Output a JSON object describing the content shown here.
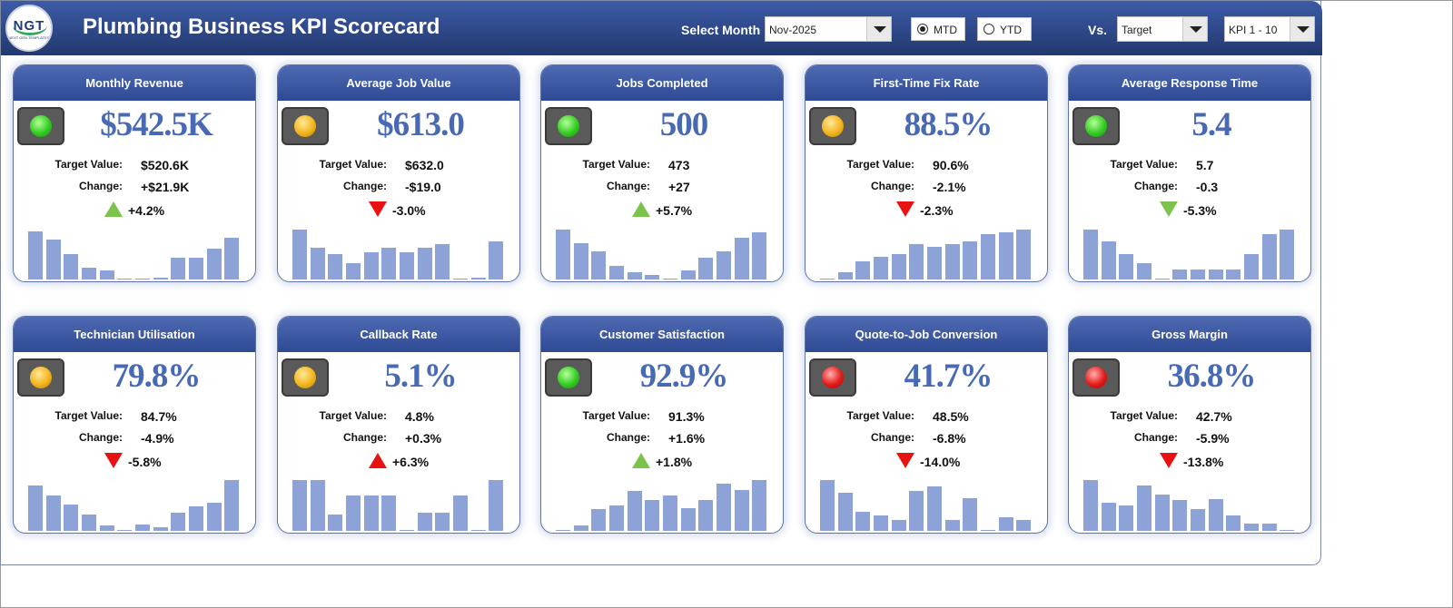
{
  "header": {
    "logo_text": "NGT",
    "logo_sub": "NEXT GEN TEMPLATES",
    "title": "Plumbing Business KPI Scorecard",
    "select_month_label": "Select Month",
    "month_value": "Nov-2025",
    "mtd_label": "MTD",
    "ytd_label": "YTD",
    "mtd_selected": true,
    "vs_label": "Vs.",
    "vs_value": "Target",
    "kpi_range_value": "KPI 1 - 10"
  },
  "labels": {
    "target": "Target Value:",
    "change": "Change:"
  },
  "colors": {
    "header_blue": "#22386f",
    "value_blue": "#4869b4",
    "bar_blue": "#8da2d6",
    "up_green": "#7cc34e",
    "down_red": "#e81212"
  },
  "kpis": [
    {
      "title": "Monthly Revenue",
      "value": "$542.5K",
      "target": "$520.6K",
      "change": "+$21.9K",
      "pct": "+4.2%",
      "status": "green",
      "arrow": "up-green",
      "bars": [
        0.95,
        0.78,
        0.5,
        0.24,
        0.18,
        0.02,
        0.02,
        0.04,
        0.42,
        0.42,
        0.6,
        0.82
      ]
    },
    {
      "title": "Average Job Value",
      "value": "$613.0",
      "target": "$632.0",
      "change": "-$19.0",
      "pct": "-3.0%",
      "status": "amber",
      "arrow": "down-red",
      "bars": [
        0.98,
        0.63,
        0.5,
        0.33,
        0.53,
        0.62,
        0.53,
        0.62,
        0.7,
        0.02,
        0.04,
        0.75
      ]
    },
    {
      "title": "Jobs Completed",
      "value": "500",
      "target": "473",
      "change": "+27",
      "pct": "+5.7%",
      "status": "green",
      "arrow": "up-green",
      "bars": [
        0.98,
        0.72,
        0.55,
        0.27,
        0.15,
        0.09,
        0.02,
        0.17,
        0.42,
        0.55,
        0.83,
        0.92
      ]
    },
    {
      "title": "First-Time Fix Rate",
      "value": "88.5%",
      "target": "90.6%",
      "change": "-2.1%",
      "pct": "-2.3%",
      "status": "amber",
      "arrow": "down-red",
      "bars": [
        0.02,
        0.15,
        0.35,
        0.45,
        0.5,
        0.7,
        0.65,
        0.7,
        0.75,
        0.9,
        0.92,
        0.98
      ]
    },
    {
      "title": "Average Response Time",
      "value": "5.4",
      "target": "5.7",
      "change": "-0.3",
      "pct": "-5.3%",
      "status": "green",
      "arrow": "down-green",
      "bars": [
        0.98,
        0.75,
        0.5,
        0.32,
        0.02,
        0.2,
        0.2,
        0.2,
        0.2,
        0.5,
        0.9,
        0.98
      ]
    },
    {
      "title": "Technician Utilisation",
      "value": "79.8%",
      "target": "84.7%",
      "change": "-4.9%",
      "pct": "-5.8%",
      "status": "amber",
      "arrow": "down-red",
      "bars": [
        0.9,
        0.7,
        0.52,
        0.33,
        0.1,
        0.02,
        0.12,
        0.07,
        0.35,
        0.48,
        0.55,
        1.0
      ]
    },
    {
      "title": "Callback Rate",
      "value": "5.1%",
      "target": "4.8%",
      "change": "+0.3%",
      "pct": "+6.3%",
      "status": "amber",
      "arrow": "up-red",
      "bars": [
        1.0,
        1.0,
        0.33,
        0.7,
        0.7,
        0.7,
        0.02,
        0.35,
        0.35,
        0.7,
        0.02,
        1.0
      ]
    },
    {
      "title": "Customer Satisfaction",
      "value": "92.9%",
      "target": "91.3%",
      "change": "+1.6%",
      "pct": "+1.8%",
      "status": "green",
      "arrow": "up-green",
      "bars": [
        0.02,
        0.1,
        0.42,
        0.5,
        0.78,
        0.6,
        0.7,
        0.45,
        0.6,
        0.92,
        0.8,
        1.0
      ]
    },
    {
      "title": "Quote-to-Job Conversion",
      "value": "41.7%",
      "target": "48.5%",
      "change": "-6.8%",
      "pct": "-14.0%",
      "status": "red",
      "arrow": "down-red",
      "bars": [
        1.0,
        0.75,
        0.38,
        0.3,
        0.22,
        0.78,
        0.87,
        0.22,
        0.65,
        0.02,
        0.27,
        0.22
      ]
    },
    {
      "title": "Gross Margin",
      "value": "36.8%",
      "target": "42.7%",
      "change": "-5.9%",
      "pct": "-13.8%",
      "status": "red",
      "arrow": "down-red",
      "bars": [
        1.0,
        0.55,
        0.5,
        0.9,
        0.72,
        0.6,
        0.43,
        0.62,
        0.3,
        0.15,
        0.15,
        0.02
      ]
    }
  ]
}
